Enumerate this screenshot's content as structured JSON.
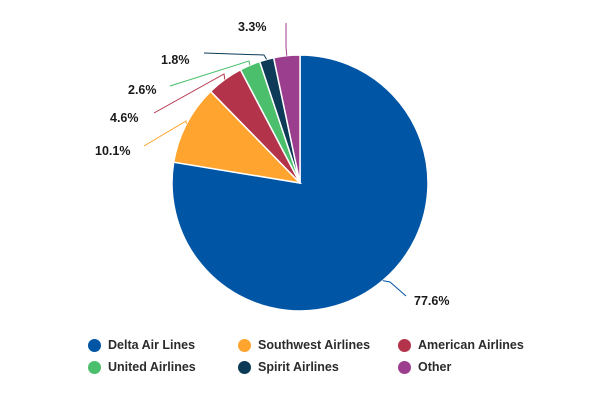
{
  "chart_data": {
    "type": "pie",
    "title": "",
    "categories": [
      "Delta Air Lines",
      "Southwest Airlines",
      "American Airlines",
      "United Airlines",
      "Spirit Airlines",
      "Other"
    ],
    "values": [
      77.6,
      10.1,
      4.6,
      2.6,
      1.8,
      3.3
    ],
    "value_labels": [
      "77.6%",
      "10.1%",
      "4.6%",
      "2.6%",
      "1.8%",
      "3.3%"
    ],
    "colors": [
      "#0055a5",
      "#ffa52f",
      "#b3334a",
      "#4bbf6b",
      "#0d3a57",
      "#9b3e8e"
    ],
    "start": "12 o'clock",
    "direction": "clockwise",
    "legend_position": "bottom"
  },
  "legend": {
    "items": [
      {
        "label": "Delta Air Lines",
        "color": "#0055a5"
      },
      {
        "label": "Southwest Airlines",
        "color": "#ffa52f"
      },
      {
        "label": "American Airlines",
        "color": "#b3334a"
      },
      {
        "label": "United Airlines",
        "color": "#4bbf6b"
      },
      {
        "label": "Spirit Airlines",
        "color": "#0d3a57"
      },
      {
        "label": "Other",
        "color": "#9b3e8e"
      }
    ]
  }
}
